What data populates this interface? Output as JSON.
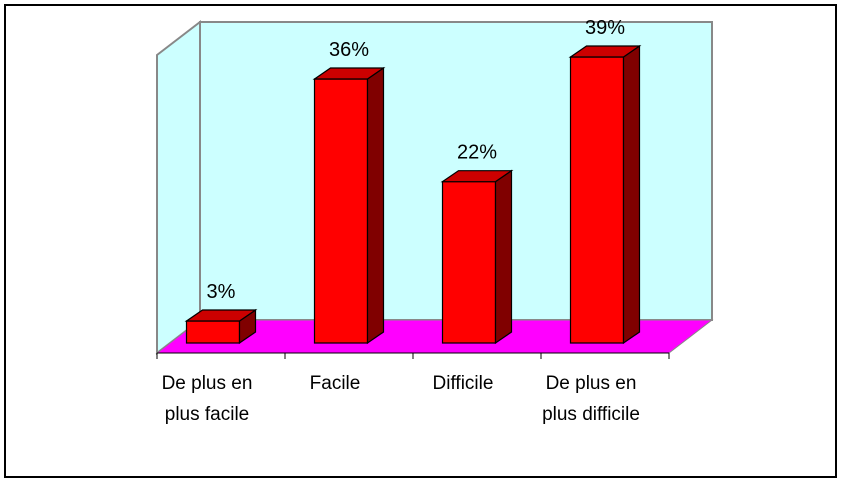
{
  "chart_data": {
    "type": "bar3d",
    "categories": [
      "De plus en plus facile",
      "Facile",
      "Difficile",
      "De plus en plus difficile"
    ],
    "values": [
      3,
      36,
      22,
      39
    ],
    "value_labels": [
      "3%",
      "36%",
      "22%",
      "39%"
    ],
    "color": "#ff0000"
  }
}
